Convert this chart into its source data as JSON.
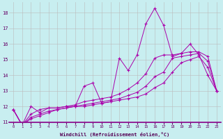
{
  "xlabel": "Windchill (Refroidissement éolien,°C)",
  "background_color": "#c8eef0",
  "line_color": "#aa00aa",
  "grid_color": "#bbbbbb",
  "xlim": [
    -0.5,
    23.5
  ],
  "ylim": [
    11.0,
    18.7
  ],
  "yticks": [
    11,
    12,
    13,
    14,
    15,
    16,
    17,
    18
  ],
  "xticks": [
    0,
    1,
    2,
    3,
    4,
    5,
    6,
    7,
    8,
    9,
    10,
    11,
    12,
    13,
    14,
    15,
    16,
    17,
    18,
    19,
    20,
    21,
    22,
    23
  ],
  "series": [
    {
      "x": [
        0,
        1,
        2,
        3,
        4,
        5,
        6,
        7,
        8,
        9,
        10,
        11,
        12,
        13,
        14,
        15,
        16,
        17,
        18,
        19,
        20,
        21,
        22,
        23
      ],
      "y": [
        11.8,
        10.8,
        12.0,
        11.6,
        11.9,
        11.9,
        12.0,
        12.0,
        13.3,
        13.5,
        12.2,
        12.3,
        15.1,
        14.3,
        15.3,
        17.3,
        18.3,
        17.2,
        15.2,
        15.4,
        16.0,
        15.3,
        14.0,
        13.0
      ]
    },
    {
      "x": [
        0,
        1,
        2,
        3,
        4,
        5,
        6,
        7,
        8,
        9,
        10,
        11,
        12,
        13,
        14,
        15,
        16,
        17,
        18,
        19,
        20,
        21,
        22,
        23
      ],
      "y": [
        11.8,
        10.8,
        11.5,
        11.8,
        11.9,
        11.9,
        12.0,
        12.1,
        12.3,
        12.4,
        12.5,
        12.6,
        12.8,
        13.1,
        13.5,
        14.1,
        15.1,
        15.3,
        15.3,
        15.4,
        15.5,
        15.5,
        15.2,
        13.0
      ]
    },
    {
      "x": [
        0,
        1,
        2,
        3,
        4,
        5,
        6,
        7,
        8,
        9,
        10,
        11,
        12,
        13,
        14,
        15,
        16,
        17,
        18,
        19,
        20,
        21,
        22,
        23
      ],
      "y": [
        11.8,
        10.8,
        11.3,
        11.5,
        11.7,
        11.8,
        11.9,
        12.0,
        12.1,
        12.2,
        12.3,
        12.4,
        12.5,
        12.7,
        12.9,
        13.3,
        13.9,
        14.2,
        15.1,
        15.2,
        15.3,
        15.4,
        14.9,
        13.0
      ]
    },
    {
      "x": [
        0,
        1,
        2,
        3,
        4,
        5,
        6,
        7,
        8,
        9,
        10,
        11,
        12,
        13,
        14,
        15,
        16,
        17,
        18,
        19,
        20,
        21,
        22,
        23
      ],
      "y": [
        11.8,
        10.8,
        11.2,
        11.4,
        11.6,
        11.8,
        11.9,
        12.0,
        12.0,
        12.1,
        12.2,
        12.3,
        12.4,
        12.5,
        12.6,
        12.8,
        13.2,
        13.5,
        14.2,
        14.8,
        15.0,
        15.2,
        14.5,
        13.0
      ]
    }
  ]
}
